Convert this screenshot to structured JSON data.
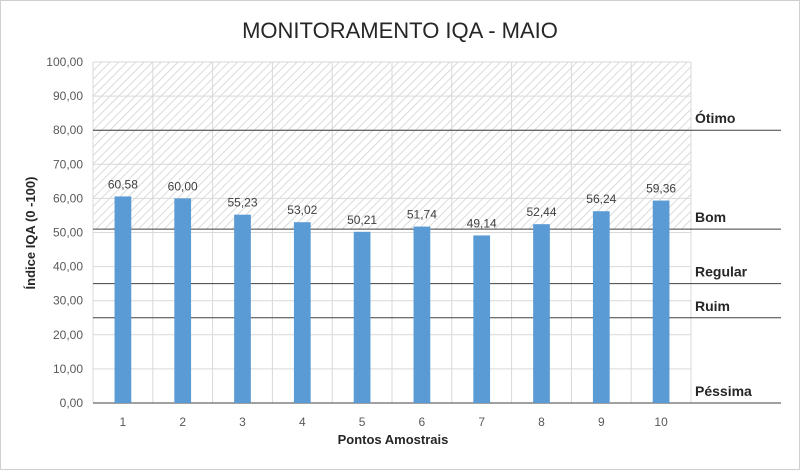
{
  "chart_data": {
    "type": "bar",
    "title": "MONITORAMENTO IQA - MAIO",
    "xlabel": "Pontos Amostrais",
    "ylabel": "Índice IQA (0 -100)",
    "categories": [
      "1",
      "2",
      "3",
      "4",
      "5",
      "6",
      "7",
      "8",
      "9",
      "10"
    ],
    "values": [
      60.58,
      60.0,
      55.23,
      53.02,
      50.21,
      51.74,
      49.14,
      52.44,
      56.24,
      59.36
    ],
    "data_labels": [
      "60,58",
      "60,00",
      "55,23",
      "53,02",
      "50,21",
      "51,74",
      "49,14",
      "52,44",
      "56,24",
      "59,36"
    ],
    "ylim": [
      0,
      100
    ],
    "yticks": [
      0,
      10,
      20,
      30,
      40,
      50,
      60,
      70,
      80,
      90,
      100
    ],
    "ytick_labels": [
      "0,00",
      "10,00",
      "20,00",
      "30,00",
      "40,00",
      "50,00",
      "60,00",
      "70,00",
      "80,00",
      "90,00",
      "100,00"
    ],
    "grid": true,
    "bar_color": "#5b9bd5",
    "quality_bands": [
      {
        "label": "Ótimo",
        "threshold": 80
      },
      {
        "label": "Bom",
        "threshold": 51
      },
      {
        "label": "Regular",
        "threshold": 35
      },
      {
        "label": "Ruim",
        "threshold": 25
      },
      {
        "label": "Péssima",
        "threshold": 0
      }
    ],
    "hatched_region": [
      51,
      100
    ]
  }
}
